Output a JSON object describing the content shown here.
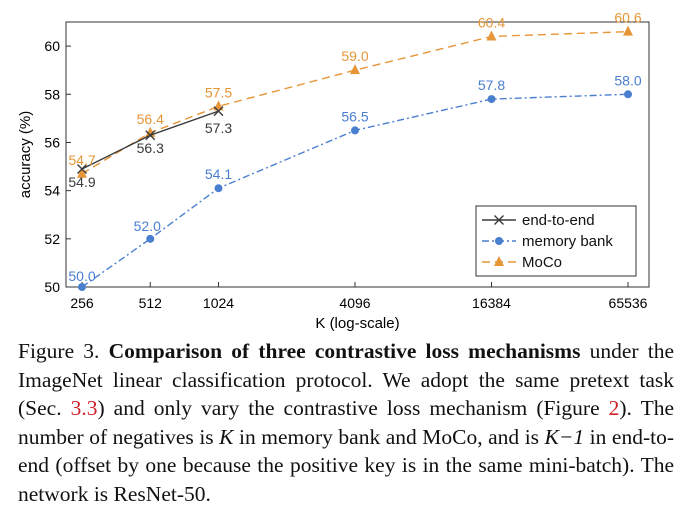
{
  "chart_data": {
    "type": "line",
    "xlabel": "K (log-scale)",
    "ylabel": "accuracy (%)",
    "x_scale": "log2",
    "x": [
      256,
      512,
      1024,
      4096,
      16384,
      65536
    ],
    "x_tick_labels": [
      "256",
      "512",
      "1024",
      "4096",
      "16384",
      "65536"
    ],
    "ylim": [
      50,
      61
    ],
    "yticks": [
      50,
      52,
      54,
      56,
      58,
      60
    ],
    "grid": false,
    "legend_position": "bottom-right",
    "series": [
      {
        "name": "end-to-end",
        "color": "#3a3a3a",
        "marker": "x",
        "linestyle": "solid",
        "x": [
          256,
          512,
          1024
        ],
        "values": [
          54.9,
          56.3,
          57.3
        ],
        "labels": [
          "54.9",
          "56.3",
          "57.3"
        ]
      },
      {
        "name": "memory bank",
        "color": "#4a7fd0",
        "marker": "circle",
        "linestyle": "dashdot",
        "x": [
          256,
          512,
          1024,
          4096,
          16384,
          65536
        ],
        "values": [
          50.0,
          52.0,
          54.1,
          56.5,
          57.8,
          58.0
        ],
        "labels": [
          "50.0",
          "52.0",
          "54.1",
          "56.5",
          "57.8",
          "58.0"
        ]
      },
      {
        "name": "MoCo",
        "color": "#e69537",
        "marker": "triangle",
        "linestyle": "dashed",
        "x": [
          256,
          512,
          1024,
          4096,
          16384,
          65536
        ],
        "values": [
          54.7,
          56.4,
          57.5,
          59.0,
          60.4,
          60.6
        ],
        "labels": [
          "54.7",
          "56.4",
          "57.5",
          "59.0",
          "60.4",
          "60.6"
        ]
      }
    ]
  },
  "caption": {
    "figure_label": "Figure 3.",
    "title": "Comparison of three contrastive loss mechanisms",
    "text_1": "under the ImageNet linear classification protocol. We adopt the same pretext task (Sec.",
    "ref_section": "3.3",
    "text_2": ") and only vary the contrastive loss mechanism (Figure",
    "ref_figure": "2",
    "text_3": "). The number of negatives is",
    "var_k": "K",
    "text_4": "in memory bank and MoCo, and is",
    "var_k_minus": "K−1",
    "text_5": "in end-to-end (offset by one because the positive key is in the same mini-batch). The network is ResNet-50."
  }
}
